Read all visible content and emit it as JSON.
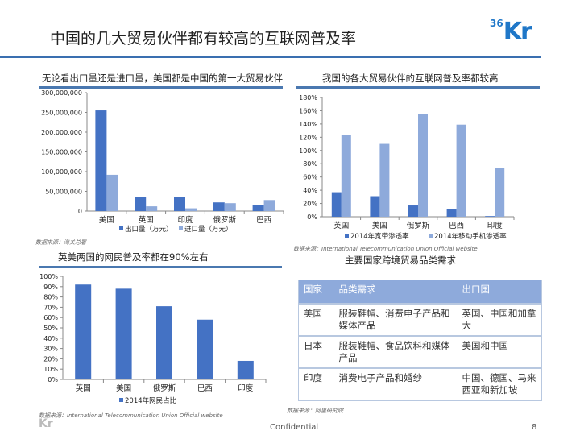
{
  "title": "中国的几大贸易伙伴都有较高的互联网普及率",
  "logo": {
    "sup": "36",
    "main": "Kr"
  },
  "chart_data": [
    {
      "type": "bar",
      "title": "无论看出口量还是进口量，美国都是中国的第一大贸易伙伴",
      "categories": [
        "美国",
        "英国",
        "印度",
        "俄罗斯",
        "巴西"
      ],
      "series": [
        {
          "name": "出口量（万元）",
          "values": [
            255000000,
            36000000,
            36000000,
            22000000,
            16000000
          ],
          "color": "#4472c4"
        },
        {
          "name": "进口量（万元）",
          "values": [
            92000000,
            12000000,
            7000000,
            20000000,
            28000000
          ],
          "color": "#8eaadb"
        }
      ],
      "ylim": [
        0,
        300000000
      ],
      "yticks": [
        "0",
        "50,000,000",
        "100,000,000",
        "150,000,000",
        "200,000,000",
        "250,000,000",
        "300,000,000"
      ],
      "legend": "bottom",
      "source": "数据来源：海关总署"
    },
    {
      "type": "bar",
      "title": "我国的各大贸易伙伴的互联网普及率都较高",
      "categories": [
        "英国",
        "美国",
        "俄罗斯",
        "巴西",
        "印度"
      ],
      "series": [
        {
          "name": "2014年宽带渗透率",
          "values": [
            37,
            31,
            17,
            11,
            1
          ],
          "color": "#4472c4"
        },
        {
          "name": "2014年移动手机渗透率",
          "values": [
            123,
            110,
            155,
            139,
            74
          ],
          "color": "#8eaadb"
        }
      ],
      "ylim": [
        0,
        180
      ],
      "yticks": [
        "0%",
        "20%",
        "40%",
        "60%",
        "80%",
        "100%",
        "120%",
        "140%",
        "160%",
        "180%"
      ],
      "legend": "bottom",
      "source": "数据来源：International Telecommunication Union Official website"
    },
    {
      "type": "bar",
      "title": "英美两国的网民普及率都在90%左右",
      "categories": [
        "英国",
        "美国",
        "俄罗斯",
        "巴西",
        "印度"
      ],
      "series": [
        {
          "name": "2014年网民占比",
          "values": [
            92,
            88,
            71,
            58,
            18
          ],
          "color": "#4472c4"
        }
      ],
      "ylim": [
        0,
        100
      ],
      "yticks": [
        "0%",
        "10%",
        "20%",
        "30%",
        "40%",
        "50%",
        "60%",
        "70%",
        "80%",
        "90%",
        "100%"
      ],
      "legend": "bottom",
      "source": "数据来源：International Telecommunication Union Official website"
    }
  ],
  "table": {
    "title": "主要国家跨境贸易品类需求",
    "headers": [
      "国家",
      "品类需求",
      "出口国"
    ],
    "rows": [
      [
        "美国",
        "服装鞋帽、消费电子产品和媒体产品",
        "英国、中国和加拿大"
      ],
      [
        "日本",
        "服装鞋帽、食品饮料和媒体产品",
        "美国和中国"
      ],
      [
        "印度",
        "消费电子产品和婚纱",
        "中国、德国、马来西亚和新加坡"
      ]
    ],
    "source": "数据来源：阿里研究院"
  },
  "footer": {
    "confidential": "Confidential",
    "page": "8"
  }
}
